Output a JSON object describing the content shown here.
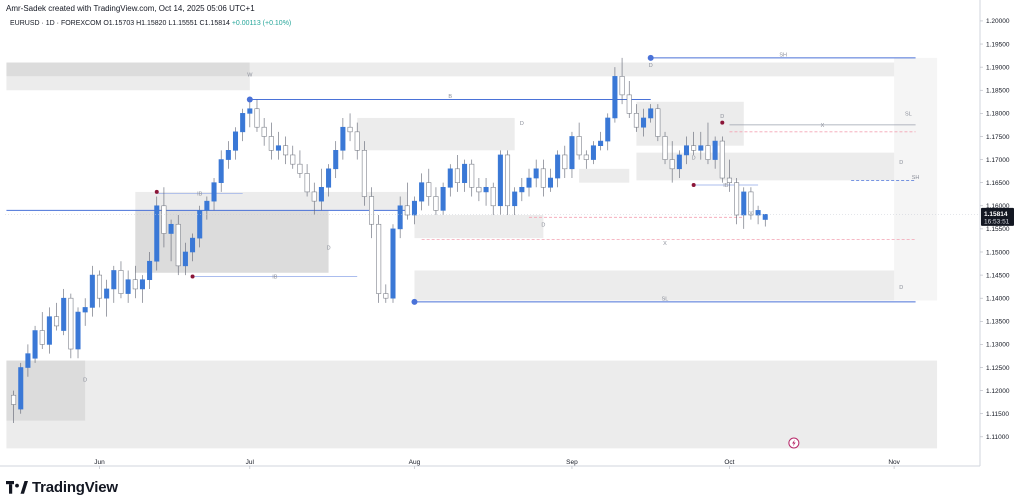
{
  "header": {
    "text": "Amr-Sadek created with TradingView.com, Oct 14, 2025 05:06 UTC+1"
  },
  "symbol": {
    "name": "EURUSD · 1D · FOREXCOM",
    "open": "O1.15703",
    "high": "H1.15820",
    "low": "L1.15551",
    "close": "C1.15814",
    "change": "+0.00113 (+0.10%)"
  },
  "brand": {
    "name": "TradingView"
  },
  "colors": {
    "bull": "#3a78d6",
    "bear": "#a3a3a3",
    "level": "#4a72d8",
    "zone": "#e6e6e6",
    "pivot": "#8b1538",
    "dash": "#f4a3b3"
  },
  "price_badge": {
    "price": "1.15814",
    "countdown": "16:53:51"
  },
  "chart_data": {
    "type": "candlestick",
    "ylim": [
      1.1065,
      1.2015
    ],
    "y_ticks": [
      "1.20000",
      "1.19500",
      "1.19000",
      "1.18500",
      "1.18000",
      "1.17500",
      "1.17000",
      "1.16500",
      "1.16000",
      "1.15500",
      "1.15000",
      "1.14500",
      "1.14000",
      "1.13500",
      "1.13000",
      "1.12500",
      "1.12000",
      "1.11500",
      "1.11000"
    ],
    "x_ticks": [
      {
        "label": "Jun",
        "index": 12
      },
      {
        "label": "Jul",
        "index": 33
      },
      {
        "label": "Aug",
        "index": 56
      },
      {
        "label": "Sep",
        "index": 78
      },
      {
        "label": "Oct",
        "index": 100
      },
      {
        "label": "Nov",
        "index": 123
      }
    ],
    "candles": [
      [
        1.119,
        1.12,
        1.113,
        1.117
      ],
      [
        1.116,
        1.126,
        1.115,
        1.125
      ],
      [
        1.125,
        1.13,
        1.123,
        1.128
      ],
      [
        1.127,
        1.134,
        1.126,
        1.133
      ],
      [
        1.133,
        1.137,
        1.129,
        1.13
      ],
      [
        1.13,
        1.138,
        1.128,
        1.136
      ],
      [
        1.136,
        1.139,
        1.133,
        1.134
      ],
      [
        1.133,
        1.142,
        1.132,
        1.14
      ],
      [
        1.14,
        1.141,
        1.127,
        1.129
      ],
      [
        1.129,
        1.138,
        1.127,
        1.137
      ],
      [
        1.137,
        1.14,
        1.134,
        1.138
      ],
      [
        1.138,
        1.147,
        1.136,
        1.145
      ],
      [
        1.145,
        1.146,
        1.138,
        1.14
      ],
      [
        1.14,
        1.144,
        1.136,
        1.142
      ],
      [
        1.142,
        1.147,
        1.139,
        1.146
      ],
      [
        1.146,
        1.148,
        1.14,
        1.141
      ],
      [
        1.141,
        1.146,
        1.139,
        1.144
      ],
      [
        1.144,
        1.147,
        1.14,
        1.142
      ],
      [
        1.142,
        1.145,
        1.139,
        1.144
      ],
      [
        1.144,
        1.15,
        1.142,
        1.148
      ],
      [
        1.148,
        1.162,
        1.146,
        1.16
      ],
      [
        1.16,
        1.164,
        1.151,
        1.154
      ],
      [
        1.154,
        1.157,
        1.148,
        1.156
      ],
      [
        1.156,
        1.158,
        1.145,
        1.147
      ],
      [
        1.147,
        1.152,
        1.145,
        1.15
      ],
      [
        1.15,
        1.154,
        1.148,
        1.153
      ],
      [
        1.153,
        1.16,
        1.151,
        1.159
      ],
      [
        1.159,
        1.162,
        1.157,
        1.161
      ],
      [
        1.161,
        1.166,
        1.159,
        1.165
      ],
      [
        1.165,
        1.172,
        1.163,
        1.17
      ],
      [
        1.17,
        1.174,
        1.168,
        1.172
      ],
      [
        1.172,
        1.177,
        1.17,
        1.176
      ],
      [
        1.176,
        1.181,
        1.174,
        1.18
      ],
      [
        1.18,
        1.183,
        1.177,
        1.181
      ],
      [
        1.181,
        1.183,
        1.176,
        1.177
      ],
      [
        1.177,
        1.179,
        1.173,
        1.175
      ],
      [
        1.175,
        1.178,
        1.17,
        1.172
      ],
      [
        1.172,
        1.176,
        1.17,
        1.173
      ],
      [
        1.173,
        1.175,
        1.169,
        1.171
      ],
      [
        1.171,
        1.173,
        1.168,
        1.169
      ],
      [
        1.169,
        1.172,
        1.166,
        1.167
      ],
      [
        1.167,
        1.169,
        1.162,
        1.163
      ],
      [
        1.163,
        1.165,
        1.158,
        1.161
      ],
      [
        1.161,
        1.168,
        1.159,
        1.164
      ],
      [
        1.164,
        1.169,
        1.162,
        1.168
      ],
      [
        1.168,
        1.174,
        1.166,
        1.172
      ],
      [
        1.172,
        1.179,
        1.17,
        1.177
      ],
      [
        1.177,
        1.18,
        1.174,
        1.176
      ],
      [
        1.176,
        1.178,
        1.17,
        1.172
      ],
      [
        1.172,
        1.174,
        1.16,
        1.162
      ],
      [
        1.162,
        1.164,
        1.153,
        1.156
      ],
      [
        1.156,
        1.158,
        1.139,
        1.141
      ],
      [
        1.141,
        1.143,
        1.139,
        1.14
      ],
      [
        1.14,
        1.156,
        1.139,
        1.155
      ],
      [
        1.155,
        1.162,
        1.153,
        1.16
      ],
      [
        1.16,
        1.165,
        1.157,
        1.158
      ],
      [
        1.158,
        1.162,
        1.156,
        1.161
      ],
      [
        1.161,
        1.167,
        1.159,
        1.165
      ],
      [
        1.165,
        1.168,
        1.16,
        1.162
      ],
      [
        1.162,
        1.164,
        1.158,
        1.159
      ],
      [
        1.159,
        1.165,
        1.158,
        1.164
      ],
      [
        1.164,
        1.169,
        1.162,
        1.168
      ],
      [
        1.168,
        1.171,
        1.163,
        1.165
      ],
      [
        1.165,
        1.17,
        1.163,
        1.169
      ],
      [
        1.169,
        1.17,
        1.162,
        1.164
      ],
      [
        1.164,
        1.166,
        1.161,
        1.163
      ],
      [
        1.163,
        1.166,
        1.16,
        1.164
      ],
      [
        1.164,
        1.165,
        1.158,
        1.16
      ],
      [
        1.16,
        1.172,
        1.158,
        1.171
      ],
      [
        1.171,
        1.172,
        1.158,
        1.16
      ],
      [
        1.16,
        1.164,
        1.158,
        1.163
      ],
      [
        1.163,
        1.166,
        1.161,
        1.164
      ],
      [
        1.164,
        1.168,
        1.162,
        1.166
      ],
      [
        1.166,
        1.17,
        1.164,
        1.168
      ],
      [
        1.168,
        1.17,
        1.162,
        1.164
      ],
      [
        1.164,
        1.168,
        1.163,
        1.166
      ],
      [
        1.166,
        1.172,
        1.164,
        1.171
      ],
      [
        1.171,
        1.173,
        1.166,
        1.168
      ],
      [
        1.168,
        1.176,
        1.166,
        1.175
      ],
      [
        1.175,
        1.178,
        1.17,
        1.171
      ],
      [
        1.171,
        1.172,
        1.168,
        1.17
      ],
      [
        1.17,
        1.174,
        1.169,
        1.173
      ],
      [
        1.173,
        1.176,
        1.172,
        1.174
      ],
      [
        1.174,
        1.18,
        1.172,
        1.179
      ],
      [
        1.179,
        1.19,
        1.178,
        1.188
      ],
      [
        1.188,
        1.192,
        1.182,
        1.184
      ],
      [
        1.184,
        1.187,
        1.179,
        1.18
      ],
      [
        1.18,
        1.182,
        1.176,
        1.177
      ],
      [
        1.177,
        1.181,
        1.175,
        1.179
      ],
      [
        1.179,
        1.182,
        1.178,
        1.181
      ],
      [
        1.181,
        1.182,
        1.174,
        1.175
      ],
      [
        1.175,
        1.176,
        1.169,
        1.17
      ],
      [
        1.17,
        1.174,
        1.165,
        1.168
      ],
      [
        1.168,
        1.172,
        1.166,
        1.171
      ],
      [
        1.171,
        1.175,
        1.169,
        1.173
      ],
      [
        1.173,
        1.176,
        1.171,
        1.172
      ],
      [
        1.172,
        1.176,
        1.17,
        1.173
      ],
      [
        1.173,
        1.178,
        1.169,
        1.17
      ],
      [
        1.17,
        1.175,
        1.168,
        1.174
      ],
      [
        1.174,
        1.175,
        1.165,
        1.166
      ],
      [
        1.166,
        1.17,
        1.163,
        1.165
      ],
      [
        1.165,
        1.166,
        1.156,
        1.158
      ],
      [
        1.158,
        1.164,
        1.155,
        1.163
      ],
      [
        1.163,
        1.164,
        1.157,
        1.158
      ],
      [
        1.158,
        1.16,
        1.156,
        1.159
      ],
      [
        1.15703,
        1.1582,
        1.15551,
        1.15814
      ]
    ],
    "zones": [
      {
        "x0": -1,
        "x1": 33,
        "top": 1.191,
        "bottom": 1.188,
        "shade": "dark"
      },
      {
        "x0": -1,
        "x1": 33,
        "top": 1.188,
        "bottom": 1.185,
        "shade": "light"
      },
      {
        "x0": 33,
        "x1": 126,
        "top": 1.191,
        "bottom": 1.188,
        "shade": "light"
      },
      {
        "x0": -1,
        "x1": 129,
        "top": 1.1265,
        "bottom": 1.1075,
        "shade": "light"
      },
      {
        "x0": -1,
        "x1": 10,
        "top": 1.1265,
        "bottom": 1.1135,
        "shade": "dark"
      },
      {
        "x0": 17,
        "x1": 55,
        "top": 1.163,
        "bottom": 1.159,
        "shade": "light"
      },
      {
        "x0": 17,
        "x1": 44,
        "top": 1.159,
        "bottom": 1.1455,
        "shade": "dark"
      },
      {
        "x0": 48,
        "x1": 70,
        "top": 1.179,
        "bottom": 1.172,
        "shade": "light"
      },
      {
        "x0": 56,
        "x1": 74,
        "top": 1.158,
        "bottom": 1.153,
        "shade": "light"
      },
      {
        "x0": 79,
        "x1": 86,
        "top": 1.168,
        "bottom": 1.165,
        "shade": "light"
      },
      {
        "x0": 87,
        "x1": 102,
        "top": 1.1825,
        "bottom": 1.173,
        "shade": "light"
      },
      {
        "x0": 87,
        "x1": 126,
        "top": 1.1715,
        "bottom": 1.1655,
        "shade": "light"
      },
      {
        "x0": 56,
        "x1": 126,
        "top": 1.146,
        "bottom": 1.1395,
        "shade": "light"
      },
      {
        "x0": 123,
        "x1": 129,
        "top": 1.192,
        "bottom": 1.1395,
        "shade": "pale"
      }
    ],
    "levels": [
      {
        "price": 1.192,
        "x0": 89,
        "x1": 126,
        "label": "SH"
      },
      {
        "price": 1.183,
        "x0": 33,
        "x1": 89,
        "label": "B"
      },
      {
        "price": 1.159,
        "x0": -1,
        "x1": 55,
        "label": "B"
      },
      {
        "price": 1.1392,
        "x0": 56,
        "x1": 126,
        "label": "SL"
      }
    ],
    "dashed_levels": [
      {
        "price": 1.176,
        "x0": 100,
        "x1": 126
      },
      {
        "price": 1.1575,
        "x0": 72,
        "x1": 102
      },
      {
        "price": 1.1527,
        "x0": 57,
        "x1": 126
      },
      {
        "price": 1.1655,
        "x0": 117,
        "x1": 126
      }
    ],
    "thin_levels": [
      {
        "price": 1.1627,
        "x0": 20,
        "x1": 32,
        "label": "IB"
      },
      {
        "price": 1.1447,
        "x0": 25,
        "x1": 48,
        "label": "IB"
      },
      {
        "price": 1.1645,
        "x0": 95,
        "x1": 104,
        "label": "IB"
      },
      {
        "price": 1.1775,
        "x0": 100,
        "x1": 126,
        "label": "X"
      }
    ],
    "markers": [
      {
        "index": 89,
        "price": 1.192,
        "color": "level"
      },
      {
        "index": 33,
        "price": 1.183,
        "color": "level"
      },
      {
        "index": 56,
        "price": 1.1392,
        "color": "level"
      },
      {
        "index": 20,
        "price": 1.163,
        "color": "pivot"
      },
      {
        "index": 25,
        "price": 1.1447,
        "color": "pivot"
      },
      {
        "index": 95,
        "price": 1.1645,
        "color": "pivot"
      },
      {
        "index": 99,
        "price": 1.178,
        "color": "pivot"
      }
    ],
    "zone_labels": [
      {
        "index": 33,
        "price": 1.188,
        "text": "W"
      },
      {
        "index": 10,
        "price": 1.122,
        "text": "D"
      },
      {
        "index": 44,
        "price": 1.1505,
        "text": "D"
      },
      {
        "index": 71,
        "price": 1.1775,
        "text": "D"
      },
      {
        "index": 74,
        "price": 1.1555,
        "text": "D"
      },
      {
        "index": 89,
        "price": 1.19,
        "text": "D"
      },
      {
        "index": 95,
        "price": 1.17,
        "text": "D"
      },
      {
        "index": 124,
        "price": 1.169,
        "text": "D"
      },
      {
        "index": 124,
        "price": 1.142,
        "text": "D"
      },
      {
        "index": 99,
        "price": 1.179,
        "text": "D"
      },
      {
        "index": 125,
        "price": 1.1795,
        "text": "SL"
      },
      {
        "index": 126,
        "price": 1.1658,
        "text": "SH"
      },
      {
        "index": 103,
        "price": 1.158,
        "text": "X"
      },
      {
        "index": 91,
        "price": 1.1515,
        "text": "X"
      }
    ],
    "x_range": [
      -1.2,
      135
    ]
  }
}
